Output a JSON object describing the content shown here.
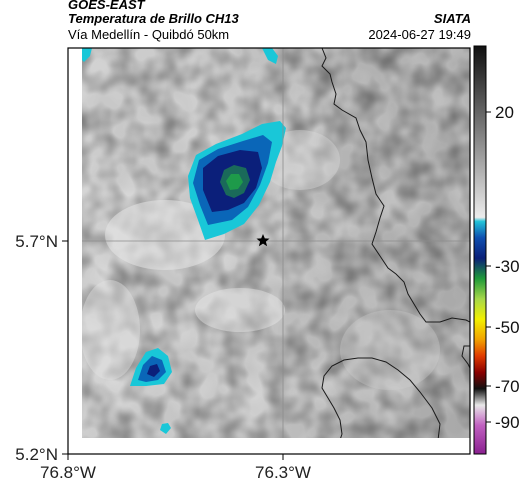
{
  "header": {
    "title": "GOES-EAST",
    "subtitle": "Temperatura de Brillo CH13",
    "route": "Vía Medellín - Quibdó 50km",
    "org": "SIATA",
    "timestamp": "2024-06-27 19:49"
  },
  "axes": {
    "lat_ticks": [
      "5.7°N",
      "5.2°N"
    ],
    "lon_ticks": [
      "76.8°W",
      "76.3°W"
    ]
  },
  "colorbar": {
    "ticks": [
      "20",
      "-30",
      "-50",
      "-70",
      "-90"
    ]
  },
  "colors": {
    "cloud_cyan": "#19c7d8",
    "cloud_blue": "#0a66b8",
    "cloud_navy": "#0b1f7a",
    "cloud_green": "#1e9a4a"
  },
  "marker": {
    "icon": "star-icon"
  }
}
